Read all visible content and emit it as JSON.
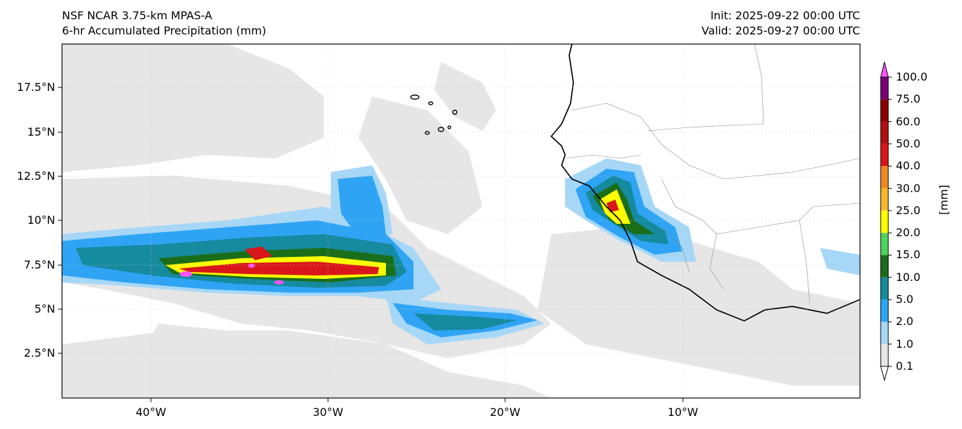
{
  "header": {
    "left_line1": "NSF NCAR 3.75-km MPAS-A",
    "left_line2": "6-hr Accumulated Precipitation (mm)",
    "right_line1": "Init: 2025-09-22 00:00 UTC",
    "right_line2": "Valid: 2025-09-27 00:00 UTC"
  },
  "axes": {
    "lat_labels": [
      "17.5°N",
      "15°N",
      "12.5°N",
      "10°N",
      "7.5°N",
      "5°N",
      "2.5°N"
    ],
    "lon_labels": [
      "40°W",
      "30°W",
      "20°W",
      "10°W"
    ]
  },
  "colorbar": {
    "unit_label": "[mm]",
    "levels": [
      "0.1",
      "1.0",
      "2.0",
      "5.0",
      "10.0",
      "15.0",
      "20.0",
      "25.0",
      "30.0",
      "40.0",
      "50.0",
      "60.0",
      "75.0",
      "100.0"
    ],
    "colors": [
      "#e6e6e6",
      "#a6d7f7",
      "#2fa4f5",
      "#168a9e",
      "#1a6e1a",
      "#4fd35c",
      "#ffff00",
      "#f5b82a",
      "#f08a24",
      "#d9161a",
      "#b01010",
      "#8a0000",
      "#770077",
      "#ff55ff"
    ]
  }
}
